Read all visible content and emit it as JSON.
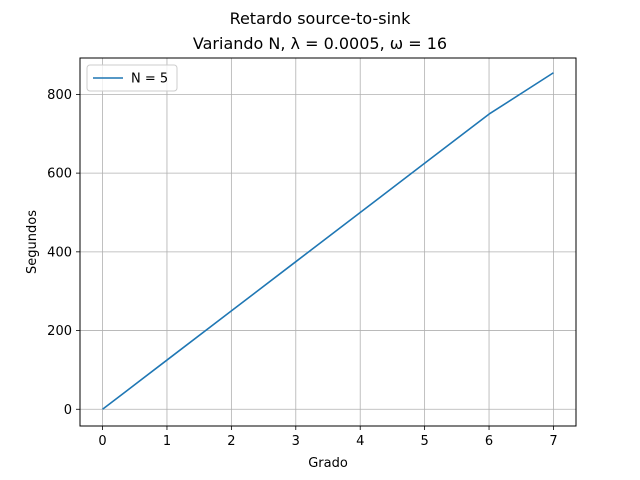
{
  "chart_data": {
    "type": "line",
    "title": "Retardo source-to-sink",
    "subtitle": "Variando N, λ = 0.0005, ω = 16",
    "xlabel": "Grado",
    "ylabel": "Segundos",
    "xlim": [
      -0.35,
      7.35
    ],
    "ylim": [
      -42.5,
      892.5
    ],
    "xticks": [
      0,
      1,
      2,
      3,
      4,
      5,
      6,
      7
    ],
    "yticks": [
      0,
      200,
      400,
      600,
      800
    ],
    "grid": true,
    "legend_position": "top-left",
    "series": [
      {
        "name": "N = 5",
        "color": "#1f77b4",
        "x": [
          0,
          1,
          2,
          3,
          4,
          5,
          6,
          7
        ],
        "y": [
          0,
          125,
          250,
          375,
          500,
          625,
          750,
          855
        ]
      }
    ]
  }
}
